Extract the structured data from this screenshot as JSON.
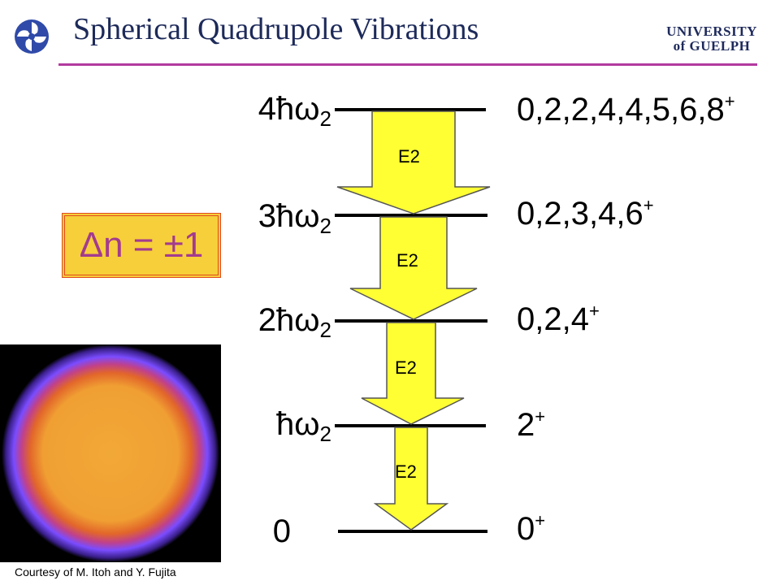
{
  "header": {
    "title": "Spherical Quadrupole Vibrations",
    "logo_left_icon": "pinwheel-logo-icon",
    "university_logo_line1": "UNIVERSITY",
    "university_logo_line2": "of GUELPH",
    "accent_color": "#b23a9f"
  },
  "levels": [
    {
      "energy_prefix": "4ħω",
      "energy_sub": "2",
      "spins": "0,2,2,4,4,5,6,8",
      "parity": "+"
    },
    {
      "energy_prefix": "3ħω",
      "energy_sub": "2",
      "spins": "0,2,3,4,6",
      "parity": "+"
    },
    {
      "energy_prefix": "2ħω",
      "energy_sub": "2",
      "spins": "0,2,4",
      "parity": "+"
    },
    {
      "energy_prefix": "ħω",
      "energy_sub": "2",
      "spins": "2",
      "parity": "+"
    },
    {
      "energy_prefix": "0",
      "energy_sub": "",
      "spins": "0",
      "parity": "+"
    }
  ],
  "transitions": [
    {
      "label": "E2"
    },
    {
      "label": "E2"
    },
    {
      "label": "E2"
    },
    {
      "label": "E2"
    }
  ],
  "selection_rule": "Δn = ±1",
  "image_credit": "Courtesy of M. Itoh and Y. Fujita",
  "colors": {
    "arrow_fill": "#ffff33",
    "box_fill": "#f7cf3a",
    "box_border": "#e04a1f",
    "rule_text": "#a33b8f"
  }
}
